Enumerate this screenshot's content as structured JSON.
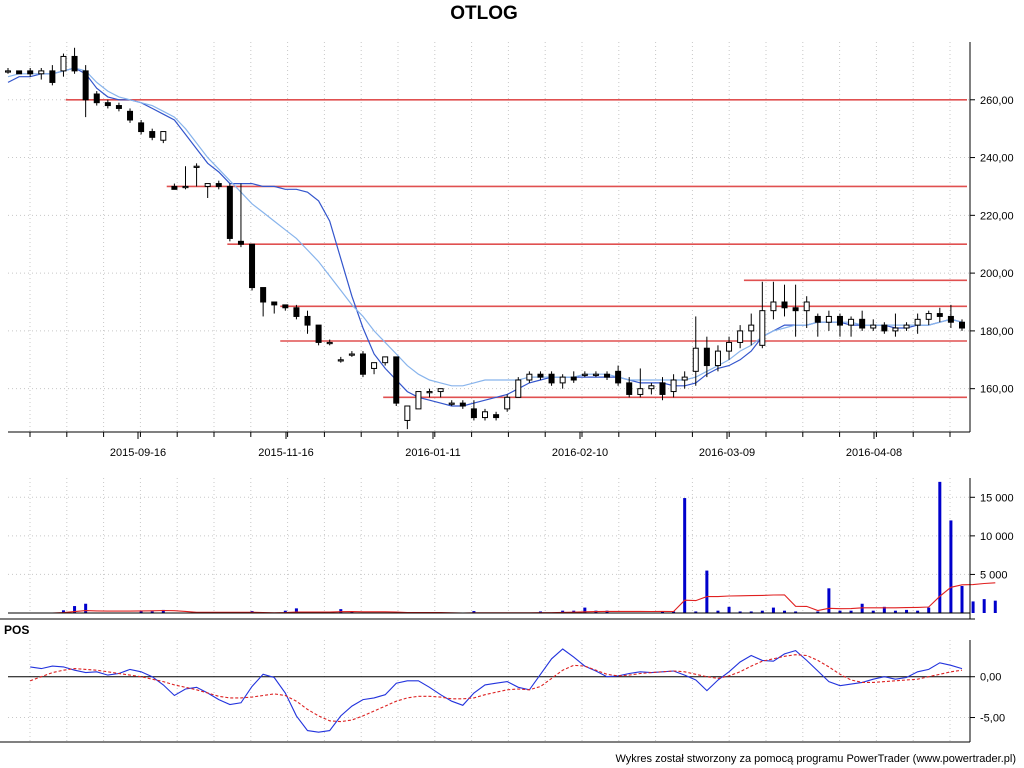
{
  "chart_data": [
    {
      "type": "candlestick",
      "title": "OTLOG",
      "x_tick_labels": [
        "2015-09-16",
        "2015-11-16",
        "2016-01-11",
        "2016-02-10",
        "2016-03-09",
        "2016-04-08"
      ],
      "y_ticks": [
        "160,00",
        "180,00",
        "200,00",
        "220,00",
        "240,00",
        "260,00"
      ],
      "ylim": [
        145,
        280
      ],
      "grid": true,
      "candles": [
        [
          270,
          271,
          269,
          270
        ],
        [
          270,
          270,
          269,
          269
        ],
        [
          270,
          271,
          268,
          269
        ],
        [
          269,
          271,
          267,
          270
        ],
        [
          270,
          272,
          265,
          266
        ],
        [
          270,
          276,
          268,
          275
        ],
        [
          275,
          278,
          269,
          270
        ],
        [
          270,
          272,
          254,
          260
        ],
        [
          262,
          263,
          258,
          259
        ],
        [
          259,
          260,
          257,
          258
        ],
        [
          258,
          259,
          256,
          257
        ],
        [
          256,
          257,
          252,
          253
        ],
        [
          252,
          253,
          248,
          249
        ],
        [
          249,
          250,
          246,
          247
        ],
        [
          246,
          249,
          245,
          249
        ],
        [
          230,
          231,
          229,
          229
        ],
        [
          230,
          237,
          229,
          230
        ],
        [
          237,
          238,
          230,
          237
        ],
        [
          230,
          231,
          226,
          231
        ],
        [
          231,
          232,
          229,
          230
        ],
        [
          230,
          231,
          211,
          212
        ],
        [
          211,
          231,
          209,
          210
        ],
        [
          210,
          210,
          194,
          195
        ],
        [
          195,
          195,
          185,
          190
        ],
        [
          190,
          190,
          186,
          189
        ],
        [
          189,
          189,
          187,
          188
        ],
        [
          188,
          189,
          184,
          185
        ],
        [
          185,
          187,
          179,
          182
        ],
        [
          182,
          182,
          175,
          176
        ],
        [
          176,
          177,
          175,
          176
        ],
        [
          170,
          171,
          169,
          170
        ],
        [
          172,
          173,
          171,
          172
        ],
        [
          172,
          173,
          164,
          165
        ],
        [
          167,
          169,
          165,
          169
        ],
        [
          169,
          171,
          168,
          171
        ],
        [
          171,
          171,
          154,
          155
        ],
        [
          149,
          154,
          146,
          154
        ],
        [
          153,
          159,
          153,
          159
        ],
        [
          159,
          160,
          157,
          159
        ],
        [
          159,
          160,
          157,
          160
        ],
        [
          155,
          156,
          154,
          155
        ],
        [
          155,
          156,
          153,
          154
        ],
        [
          153,
          156,
          149,
          150
        ],
        [
          150,
          153,
          149,
          152
        ],
        [
          151,
          152,
          149,
          150
        ],
        [
          153,
          158,
          152,
          157
        ],
        [
          157,
          164,
          157,
          163
        ],
        [
          163,
          166,
          162,
          165
        ],
        [
          165,
          166,
          163,
          164
        ],
        [
          165,
          166,
          161,
          162
        ],
        [
          162,
          165,
          160,
          164
        ],
        [
          164,
          166,
          162,
          163
        ],
        [
          165,
          166,
          164,
          165
        ],
        [
          165,
          166,
          164,
          165
        ],
        [
          165,
          166,
          163,
          164
        ],
        [
          166,
          168,
          161,
          162
        ],
        [
          162,
          164,
          157,
          158
        ],
        [
          158,
          167,
          157,
          160
        ],
        [
          160,
          162,
          158,
          161
        ],
        [
          162,
          164,
          156,
          158
        ],
        [
          159,
          165,
          157,
          163
        ],
        [
          163,
          166,
          160,
          164
        ],
        [
          166,
          185,
          161,
          174
        ],
        [
          174,
          178,
          164,
          168
        ],
        [
          168,
          175,
          166,
          173
        ],
        [
          173,
          178,
          170,
          176
        ],
        [
          176,
          182,
          174,
          180
        ],
        [
          180,
          186,
          175,
          182
        ],
        [
          175,
          197,
          174,
          187
        ],
        [
          187,
          197,
          184,
          190
        ],
        [
          190,
          196,
          185,
          188
        ],
        [
          188,
          196,
          178,
          187
        ],
        [
          187,
          192,
          181,
          190
        ],
        [
          185,
          186,
          178,
          183
        ],
        [
          183,
          187,
          180,
          185
        ],
        [
          185,
          186,
          178,
          182
        ],
        [
          182,
          185,
          178,
          184
        ],
        [
          184,
          187,
          180,
          181
        ],
        [
          181,
          184,
          180,
          182
        ],
        [
          182,
          183,
          179,
          180
        ],
        [
          180,
          186,
          178,
          181
        ],
        [
          181,
          183,
          180,
          182
        ],
        [
          182,
          186,
          179,
          184
        ],
        [
          184,
          187,
          182,
          186
        ],
        [
          186,
          188,
          183,
          185
        ],
        [
          185,
          189,
          181,
          183
        ],
        [
          183,
          184,
          180,
          181
        ]
      ],
      "moving_averages": [
        {
          "color": "#3355cc",
          "values": [
            266,
            268,
            268,
            269,
            269,
            270,
            271,
            269,
            264,
            261,
            260,
            260,
            259,
            257,
            255,
            253,
            248,
            243,
            238,
            235,
            231,
            231,
            231,
            230,
            230,
            229,
            229,
            228,
            225,
            218,
            205,
            192,
            181,
            172,
            167,
            163,
            159,
            157,
            156,
            155,
            154,
            154,
            155,
            156,
            157,
            158,
            160,
            162,
            163,
            164,
            164,
            164,
            164,
            164,
            164,
            164,
            163,
            162,
            162,
            162,
            161,
            161,
            162,
            165,
            167,
            168,
            170,
            173,
            178,
            180,
            182,
            182,
            182,
            183,
            183,
            183,
            182,
            182,
            182,
            182,
            181,
            181,
            182,
            182,
            183,
            184,
            183
          ]
        },
        {
          "color": "#88b4ec",
          "values": [
            268,
            269,
            269,
            269,
            269,
            270,
            271,
            270,
            266,
            263,
            261,
            260,
            259,
            258,
            256,
            254,
            250,
            245,
            240,
            236,
            232,
            228,
            224,
            221,
            218,
            215,
            212,
            208,
            204,
            199,
            194,
            189,
            185,
            180,
            176,
            172,
            168,
            165,
            163,
            162,
            161,
            161,
            162,
            163,
            163,
            163,
            163,
            164,
            164,
            164,
            164,
            164,
            165,
            165,
            165,
            164,
            163,
            163,
            163,
            163,
            163,
            163,
            164,
            166,
            168,
            170,
            173,
            175,
            178,
            180,
            181,
            182,
            182,
            183,
            183,
            183,
            183,
            182,
            182,
            182,
            182,
            182,
            182,
            182,
            183,
            184,
            183
          ]
        }
      ],
      "horizontal_levels": [
        {
          "value": 260,
          "x_start": 0.06
        },
        {
          "value": 230,
          "x_start": 0.165
        },
        {
          "value": 210,
          "x_start": 0.228
        },
        {
          "value": 197.5,
          "x_start": 0.765
        },
        {
          "value": 188.5,
          "x_start": 0.283
        },
        {
          "value": 176.5,
          "x_start": 0.283
        },
        {
          "value": 157,
          "x_start": 0.39
        }
      ],
      "level_color": "#e05050"
    },
    {
      "type": "bar",
      "y_ticks": [
        "5 000",
        "10 000",
        "15 000"
      ],
      "ylim": [
        0,
        17500
      ],
      "series_color": "#0000cc",
      "average_color": "#e02020",
      "volume": [
        {
          "i": 5,
          "v": 350
        },
        {
          "i": 6,
          "v": 900
        },
        {
          "i": 7,
          "v": 1200
        },
        {
          "i": 12,
          "v": 250
        },
        {
          "i": 13,
          "v": 200
        },
        {
          "i": 14,
          "v": 400
        },
        {
          "i": 22,
          "v": 250
        },
        {
          "i": 25,
          "v": 300
        },
        {
          "i": 26,
          "v": 600
        },
        {
          "i": 30,
          "v": 500
        },
        {
          "i": 31,
          "v": 200
        },
        {
          "i": 42,
          "v": 250
        },
        {
          "i": 48,
          "v": 200
        },
        {
          "i": 50,
          "v": 300
        },
        {
          "i": 51,
          "v": 300
        },
        {
          "i": 52,
          "v": 700
        },
        {
          "i": 53,
          "v": 300
        },
        {
          "i": 54,
          "v": 300
        },
        {
          "i": 59,
          "v": 200
        },
        {
          "i": 60,
          "v": 200
        },
        {
          "i": 61,
          "v": 14900
        },
        {
          "i": 62,
          "v": 200
        },
        {
          "i": 63,
          "v": 5500
        },
        {
          "i": 64,
          "v": 300
        },
        {
          "i": 65,
          "v": 800
        },
        {
          "i": 66,
          "v": 200
        },
        {
          "i": 67,
          "v": 200
        },
        {
          "i": 68,
          "v": 300
        },
        {
          "i": 69,
          "v": 700
        },
        {
          "i": 70,
          "v": 300
        },
        {
          "i": 71,
          "v": 200
        },
        {
          "i": 73,
          "v": 200
        },
        {
          "i": 74,
          "v": 3200
        },
        {
          "i": 75,
          "v": 300
        },
        {
          "i": 76,
          "v": 300
        },
        {
          "i": 77,
          "v": 1200
        },
        {
          "i": 78,
          "v": 300
        },
        {
          "i": 79,
          "v": 800
        },
        {
          "i": 80,
          "v": 300
        },
        {
          "i": 81,
          "v": 400
        },
        {
          "i": 82,
          "v": 300
        },
        {
          "i": 83,
          "v": 700
        },
        {
          "i": 84,
          "v": 17000
        },
        {
          "i": 85,
          "v": 12000
        },
        {
          "i": 86,
          "v": 3500
        },
        {
          "i": 87,
          "v": 1500
        },
        {
          "i": 88,
          "v": 1800
        },
        {
          "i": 89,
          "v": 1600
        }
      ]
    },
    {
      "type": "line",
      "title": "POS",
      "y_ticks": [
        "-5,00",
        "0,00"
      ],
      "ylim": [
        -8,
        4.5
      ],
      "series": [
        {
          "color": "#2233dd",
          "dashed": false,
          "values": [
            1.2,
            1.0,
            1.3,
            1.2,
            0.8,
            0.5,
            0.6,
            0.2,
            0.4,
            0.9,
            0.6,
            0.0,
            -1.0,
            -2.3,
            -1.5,
            -1.3,
            -2.0,
            -2.8,
            -3.4,
            -3.2,
            -1.2,
            0.3,
            -0.1,
            -2.0,
            -4.8,
            -6.6,
            -6.8,
            -6.6,
            -4.8,
            -3.6,
            -2.8,
            -2.6,
            -2.2,
            -0.8,
            -0.5,
            -0.5,
            -1.3,
            -2.2,
            -3.0,
            -3.5,
            -2.0,
            -1.0,
            -0.8,
            -0.6,
            -1.3,
            -1.6,
            0.3,
            2.2,
            3.4,
            2.4,
            1.3,
            0.7,
            0.0,
            0.1,
            0.4,
            0.6,
            0.5,
            0.6,
            0.7,
            0.2,
            -0.4,
            -1.7,
            -0.4,
            0.6,
            1.8,
            2.6,
            2.0,
            1.9,
            2.8,
            3.2,
            2.0,
            0.7,
            -0.6,
            -1.1,
            -0.9,
            -0.7,
            -0.3,
            0.0,
            -0.3,
            -0.1,
            0.6,
            0.9,
            1.7,
            1.4,
            1.0
          ]
        },
        {
          "color": "#dd2222",
          "dashed": true,
          "values": [
            -0.5,
            0.0,
            0.5,
            0.8,
            1.0,
            0.9,
            0.8,
            0.6,
            0.4,
            0.2,
            0.0,
            -0.3,
            -0.6,
            -1.0,
            -1.3,
            -1.6,
            -2.0,
            -2.4,
            -2.6,
            -2.6,
            -2.5,
            -2.3,
            -2.1,
            -2.3,
            -3.0,
            -4.0,
            -4.8,
            -5.4,
            -5.5,
            -5.3,
            -4.8,
            -4.2,
            -3.6,
            -3.0,
            -2.6,
            -2.4,
            -2.4,
            -2.5,
            -2.7,
            -2.7,
            -2.6,
            -2.2,
            -1.9,
            -1.6,
            -1.5,
            -1.6,
            -1.2,
            -0.2,
            0.8,
            1.4,
            1.3,
            0.8,
            0.3,
            0.1,
            0.2,
            0.4,
            0.5,
            0.6,
            0.7,
            0.6,
            0.3,
            0.0,
            -0.2,
            0.1,
            0.6,
            1.3,
            1.9,
            2.2,
            2.5,
            2.7,
            2.6,
            2.0,
            1.2,
            0.3,
            -0.4,
            -0.7,
            -0.7,
            -0.6,
            -0.5,
            -0.4,
            -0.3,
            0.0,
            0.3,
            0.6,
            0.8
          ]
        }
      ]
    }
  ],
  "footer": "Wykres został stworzony za pomocą programu PowerTrader (www.powertrader.pl)"
}
